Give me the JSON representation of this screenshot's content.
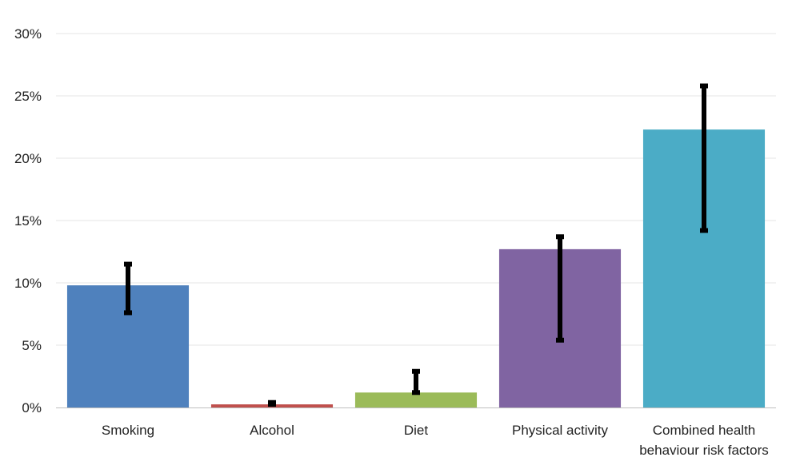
{
  "chart_data": {
    "type": "bar",
    "title": "",
    "xlabel": "",
    "ylabel": "",
    "ylim": [
      0,
      30
    ],
    "yticks": [
      "0%",
      "5%",
      "10%",
      "15%",
      "20%",
      "25%",
      "30%"
    ],
    "ytick_values": [
      0,
      5,
      10,
      15,
      20,
      25,
      30
    ],
    "grid": true,
    "legend": "none",
    "categories": [
      [
        "Smoking"
      ],
      [
        "Alcohol"
      ],
      [
        "Diet"
      ],
      [
        "Physical activity"
      ],
      [
        "Combined health",
        "behaviour risk factors"
      ]
    ],
    "values": [
      9.8,
      0.25,
      1.2,
      12.7,
      22.3
    ],
    "error_low": [
      7.6,
      0.25,
      1.2,
      5.4,
      14.2
    ],
    "error_high": [
      11.5,
      0.4,
      2.9,
      13.7,
      25.8
    ],
    "colors": [
      "#4f81bd",
      "#c0504d",
      "#9bbb59",
      "#8064a2",
      "#4bacc6"
    ]
  }
}
